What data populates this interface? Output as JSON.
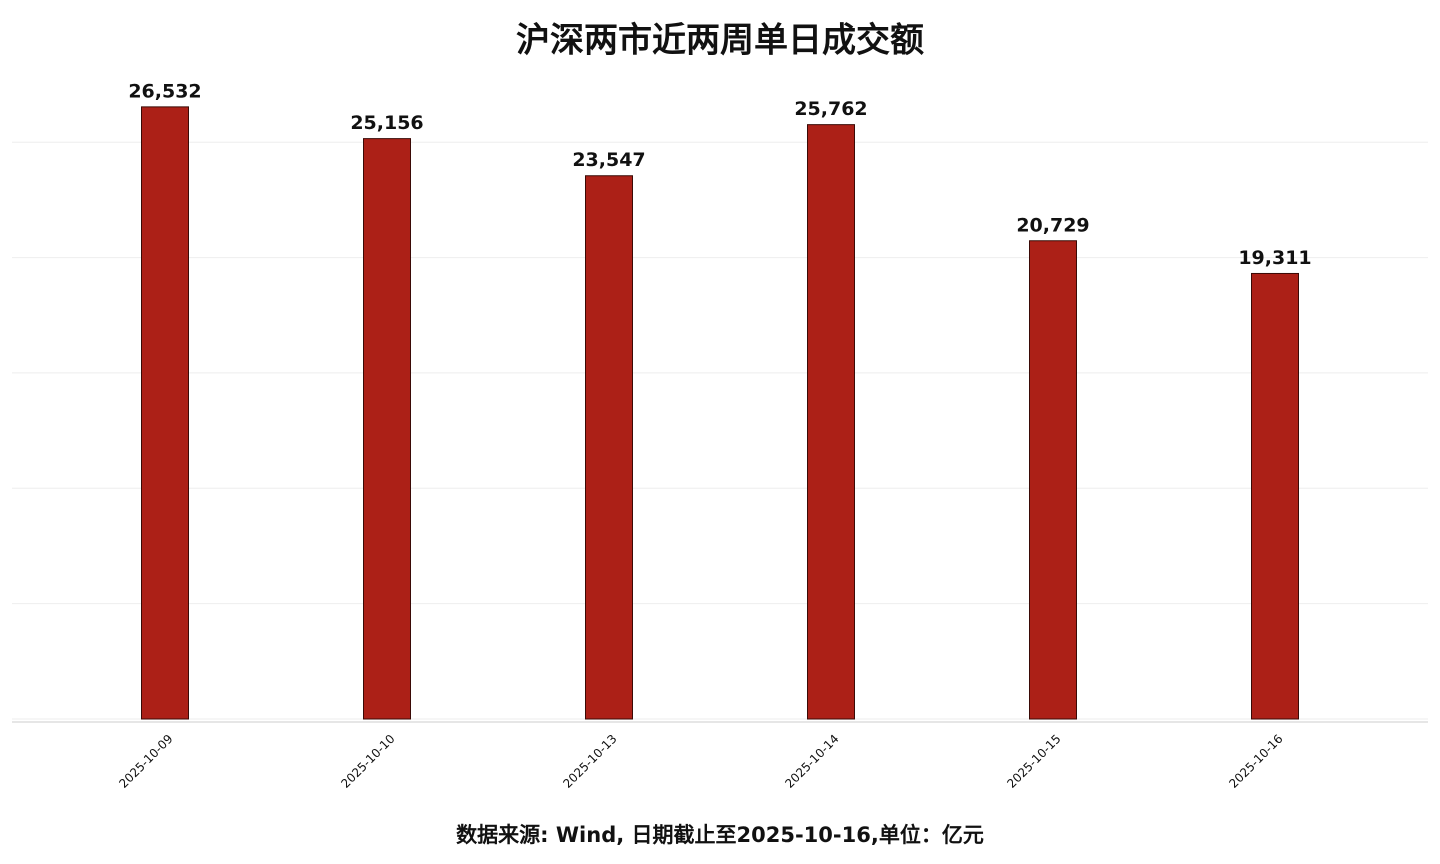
{
  "chart_data": {
    "type": "bar",
    "title": "沪深两市近两周单日成交额",
    "categories": [
      "2025-10-09",
      "2025-10-10",
      "2025-10-13",
      "2025-10-14",
      "2025-10-15",
      "2025-10-16"
    ],
    "values": [
      26532,
      25156,
      23547,
      25762,
      20729,
      19311
    ],
    "value_labels": [
      "26,532",
      "25,156",
      "23,547",
      "25,762",
      "20,729",
      "19,311"
    ],
    "color": "#ac2017",
    "ylim": [
      0,
      28000
    ],
    "yticks": [
      0,
      5000,
      10000,
      15000,
      20000,
      25000
    ],
    "grid": true,
    "note": "数据来源: Wind, 日期截止至2025-10-16,单位：亿元"
  }
}
